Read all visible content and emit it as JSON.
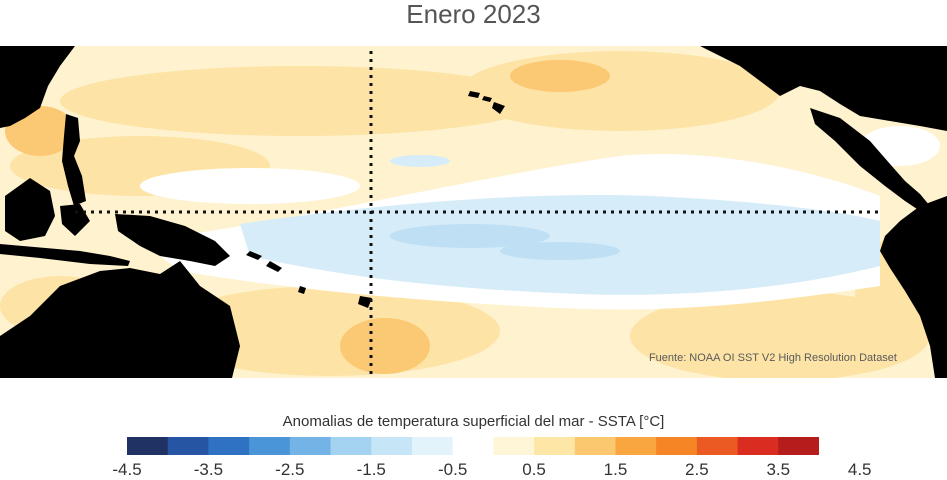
{
  "title": "Enero 2023",
  "source": "Fuente: NOAA OI SST V2 High Resolution Dataset",
  "legend": {
    "title": "Anomalias de temperatura superficial del mar - SSTA  [°C]",
    "ticks": [
      "-4.5",
      "-3.5",
      "-2.5",
      "-1.5",
      "-0.5",
      "0.5",
      "1.5",
      "2.5",
      "3.5",
      "4.5"
    ],
    "colors": [
      "#1f3263",
      "#2655a3",
      "#2f72c4",
      "#4a94d8",
      "#74b3e6",
      "#a4d3f1",
      "#c6e5f6",
      "#e3f3fb",
      "#ffffff",
      "#fff6d8",
      "#fde6a6",
      "#fbc870",
      "#f9a640",
      "#f58525",
      "#ec5a24",
      "#da2c20",
      "#b51c1c"
    ]
  },
  "map_colors": {
    "land": "#000000",
    "neutral": "#ffffff",
    "slight_warm": "#fef2cf",
    "warm": "#fde4a6",
    "warmer": "#fbc973",
    "cool": "#d6ecf8",
    "cooler": "#bfe0f4",
    "reference_lines": "#111111"
  }
}
